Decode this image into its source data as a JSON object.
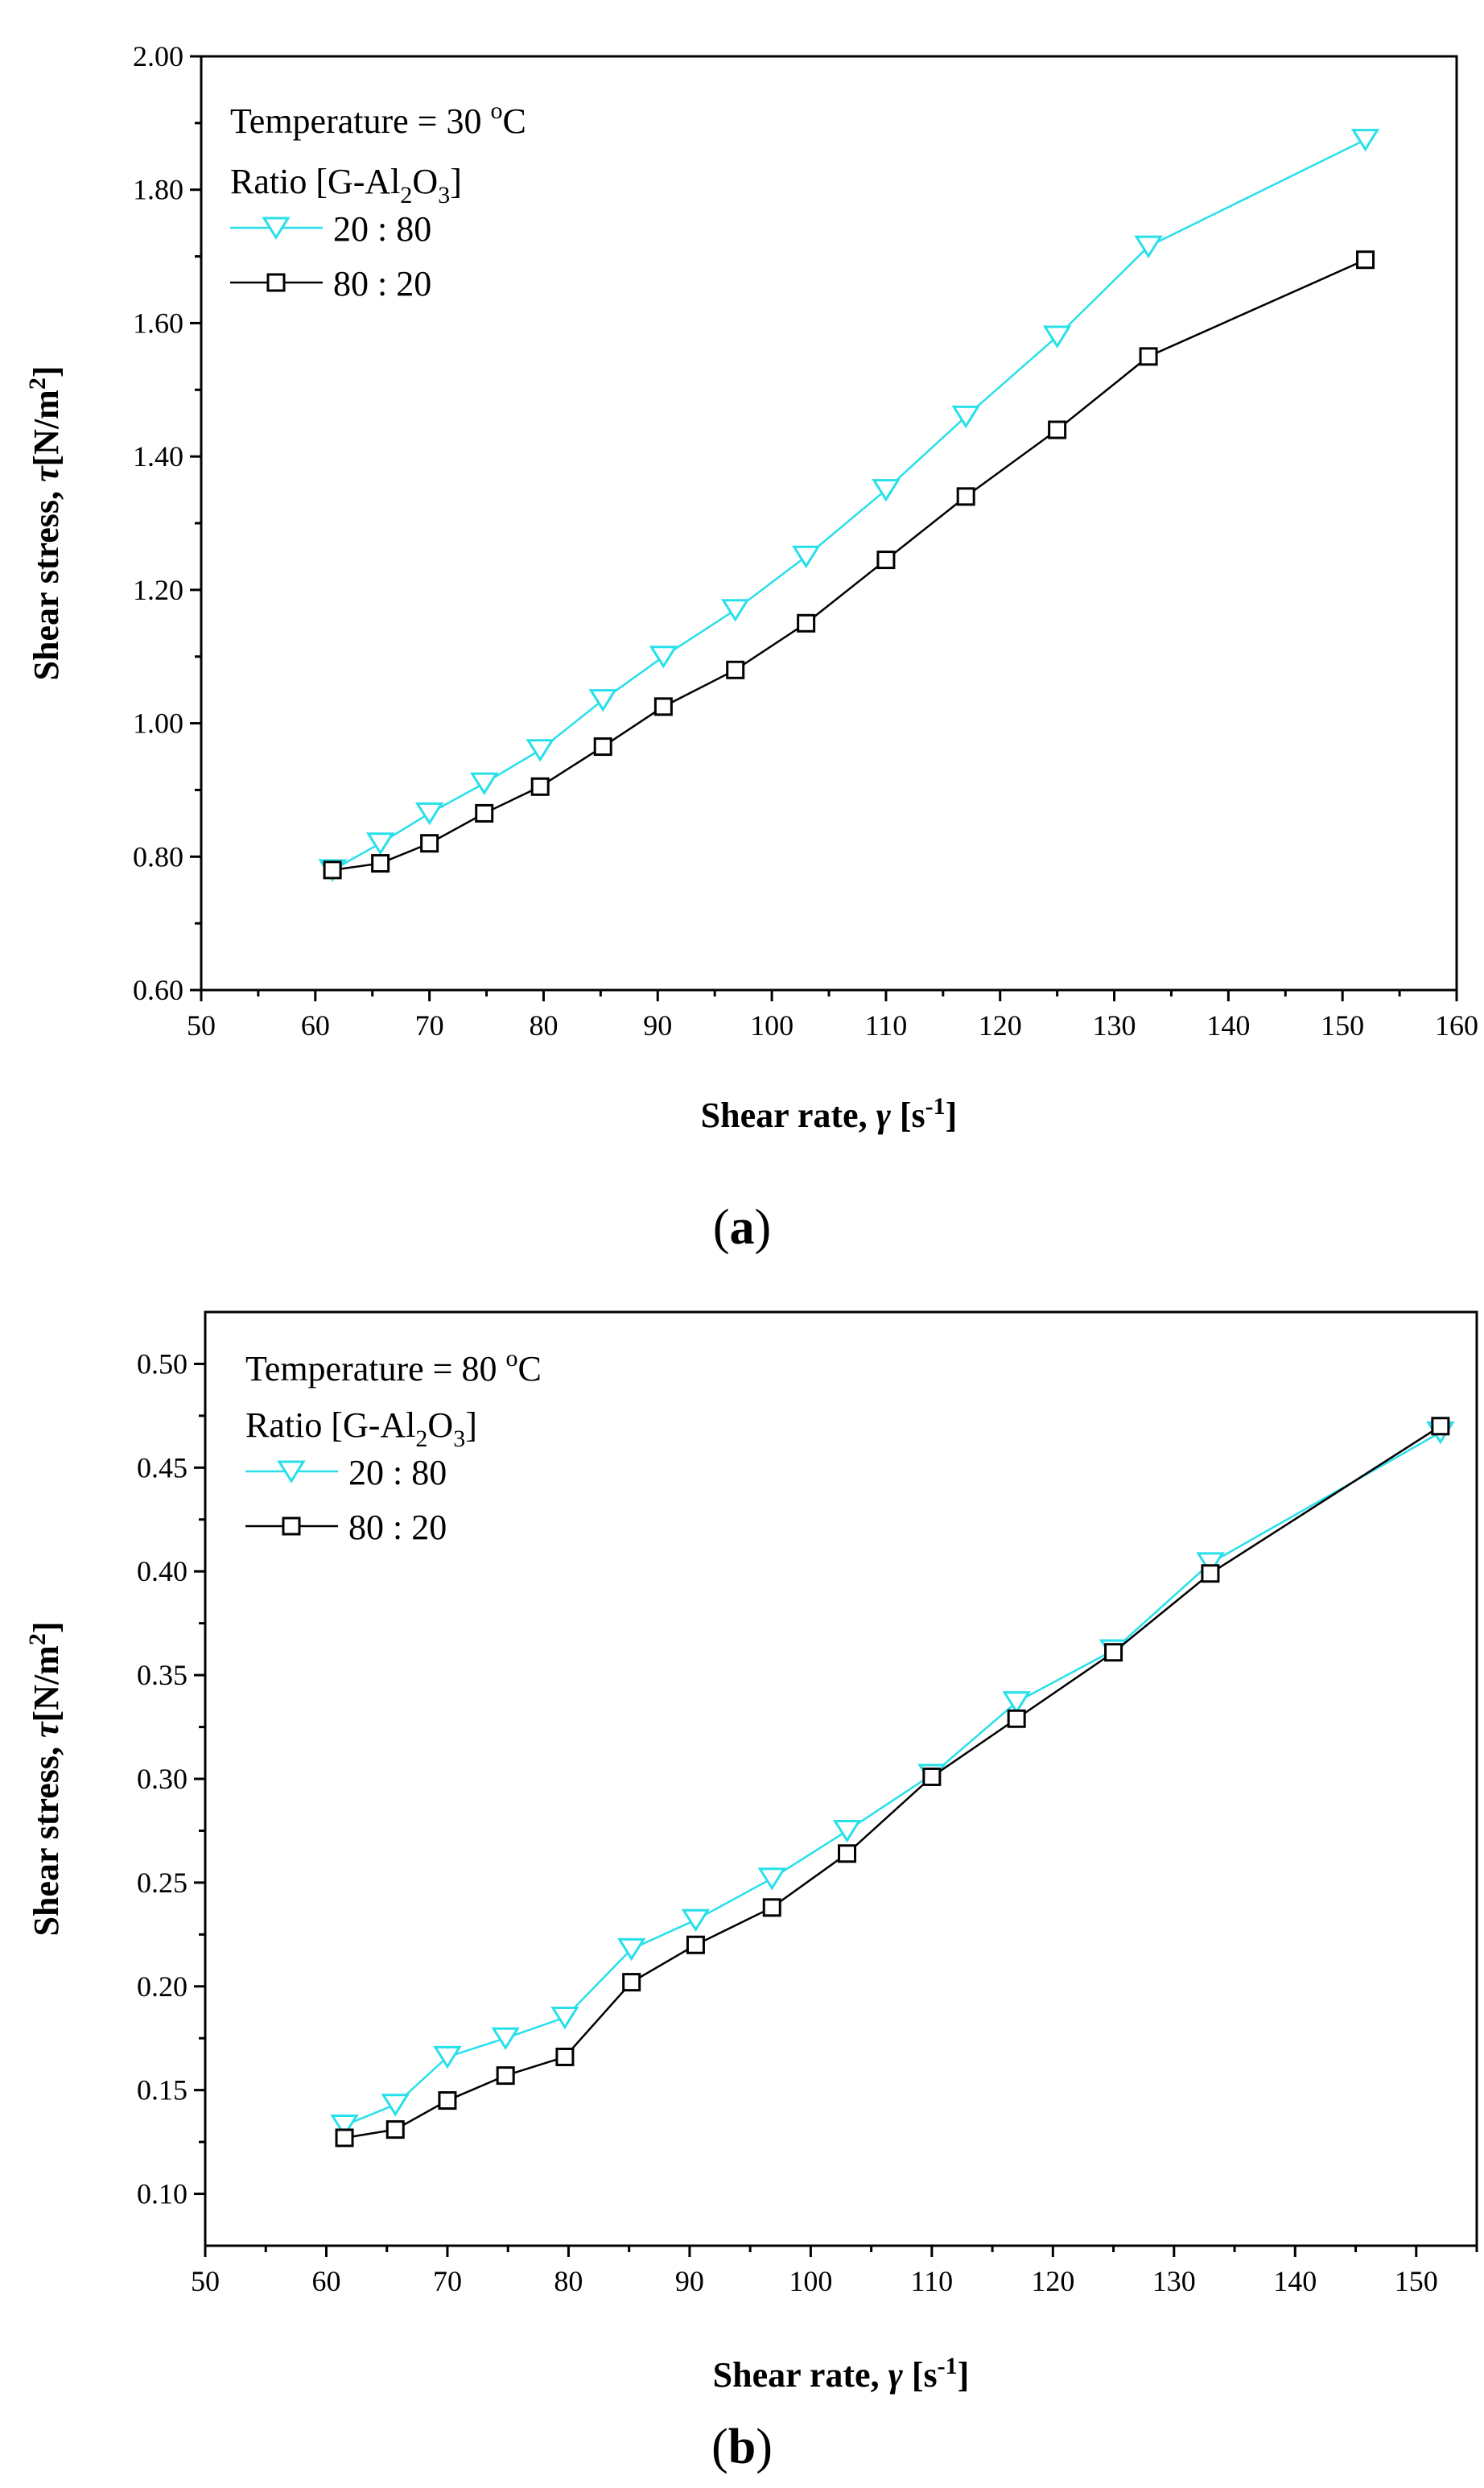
{
  "colors": {
    "series_20_80": "#27e0ea",
    "series_80_20": "#000000",
    "axis": "#000000",
    "background": "#ffffff"
  },
  "chart_data": [
    {
      "type": "line",
      "panel_label": "a",
      "title": "",
      "xlabel": "Shear rate, γ [s⁻¹]",
      "xlabel_parts": {
        "main": "Shear rate, ",
        "symbol": "γ",
        "unit_open": " [s",
        "unit_sup": "-1",
        "unit_close": "]"
      },
      "ylabel": "Shear stress, τ [N/m²]",
      "ylabel_parts": {
        "main": "Shear stress, ",
        "symbol": "τ",
        "unit_open": "[N/m",
        "unit_sup": "2",
        "unit_close": "]"
      },
      "xlim": [
        50,
        160
      ],
      "ylim": [
        0.6,
        2.0
      ],
      "xticks": [
        50,
        60,
        70,
        80,
        90,
        100,
        110,
        120,
        130,
        140,
        150,
        160
      ],
      "xtick_labels": [
        "50",
        "60",
        "70",
        "80",
        "90",
        "100",
        "110",
        "120",
        "130",
        "140",
        "150",
        "160"
      ],
      "yticks": [
        0.6,
        0.8,
        1.0,
        1.2,
        1.4,
        1.6,
        1.8,
        2.0
      ],
      "ytick_labels": [
        "0.60",
        "0.80",
        "1.00",
        "1.20",
        "1.40",
        "1.60",
        "1.80",
        "2.00"
      ],
      "grid": false,
      "legend": {
        "position": "top-left",
        "line1_prefix": "Temperature = 30 ",
        "line1_sup": "o",
        "line1_suffix": "C",
        "line2_prefix": "Ratio  [G-Al",
        "line2_sub1": "2",
        "line2_mid": "O",
        "line2_sub2": "3",
        "line2_suffix": "]"
      },
      "series": [
        {
          "name": "20 : 80",
          "marker": "triangle-down",
          "color": "#27e0ea",
          "x": [
            61.5,
            65.7,
            70.0,
            74.8,
            79.7,
            85.2,
            90.5,
            96.8,
            103.0,
            110.0,
            117.0,
            125.0,
            133.0,
            152.0
          ],
          "y": [
            0.78,
            0.82,
            0.865,
            0.91,
            0.96,
            1.035,
            1.1,
            1.17,
            1.25,
            1.35,
            1.46,
            1.58,
            1.715,
            1.875
          ]
        },
        {
          "name": "80 : 20",
          "marker": "square",
          "color": "#000000",
          "x": [
            61.5,
            65.7,
            70.0,
            74.8,
            79.7,
            85.2,
            90.5,
            96.8,
            103.0,
            110.0,
            117.0,
            125.0,
            133.0,
            152.0
          ],
          "y": [
            0.78,
            0.79,
            0.82,
            0.865,
            0.905,
            0.965,
            1.025,
            1.08,
            1.15,
            1.245,
            1.34,
            1.44,
            1.55,
            1.695
          ]
        }
      ]
    },
    {
      "type": "line",
      "panel_label": "b",
      "title": "",
      "xlabel": "Shear rate, γ [s⁻¹]",
      "xlabel_parts": {
        "main": "Shear rate, ",
        "symbol": "γ",
        "unit_open": " [s",
        "unit_sup": "-1",
        "unit_close": "]"
      },
      "ylabel": "Shear stress, τ [N/m²]",
      "ylabel_parts": {
        "main": "Shear stress, ",
        "symbol": "τ",
        "unit_open": "[N/m",
        "unit_sup": "2",
        "unit_close": "]"
      },
      "xlim": [
        50,
        155
      ],
      "ylim": [
        0.075,
        0.525
      ],
      "xticks": [
        50,
        60,
        70,
        80,
        90,
        100,
        110,
        120,
        130,
        140,
        150
      ],
      "xtick_labels": [
        "50",
        "60",
        "70",
        "80",
        "90",
        "100",
        "110",
        "120",
        "130",
        "140",
        "150"
      ],
      "yticks": [
        0.1,
        0.15,
        0.2,
        0.25,
        0.3,
        0.35,
        0.4,
        0.45,
        0.5
      ],
      "ytick_labels": [
        "0.10",
        "0.15",
        "0.20",
        "0.25",
        "0.30",
        "0.35",
        "0.40",
        "0.45",
        "0.50"
      ],
      "grid": false,
      "legend": {
        "position": "top-left",
        "line1_prefix": "Temperature = 80 ",
        "line1_sup": "o",
        "line1_suffix": "C",
        "line2_prefix": "Ratio  [G-Al",
        "line2_sub1": "2",
        "line2_mid": "O",
        "line2_sub2": "3",
        "line2_suffix": "]"
      },
      "series": [
        {
          "name": "20 : 80",
          "marker": "triangle-down",
          "color": "#27e0ea",
          "x": [
            61.5,
            65.7,
            70.0,
            74.8,
            79.7,
            85.2,
            90.5,
            96.8,
            103.0,
            110.0,
            117.0,
            125.0,
            133.0,
            152.0
          ],
          "y": [
            0.133,
            0.143,
            0.166,
            0.175,
            0.185,
            0.218,
            0.232,
            0.252,
            0.275,
            0.302,
            0.337,
            0.362,
            0.404,
            0.467
          ]
        },
        {
          "name": "80 : 20",
          "marker": "square",
          "color": "#000000",
          "x": [
            61.5,
            65.7,
            70.0,
            74.8,
            79.7,
            85.2,
            90.5,
            96.8,
            103.0,
            110.0,
            117.0,
            125.0,
            133.0,
            152.0
          ],
          "y": [
            0.127,
            0.131,
            0.145,
            0.157,
            0.166,
            0.202,
            0.22,
            0.238,
            0.264,
            0.301,
            0.329,
            0.361,
            0.399,
            0.47
          ]
        }
      ]
    }
  ]
}
